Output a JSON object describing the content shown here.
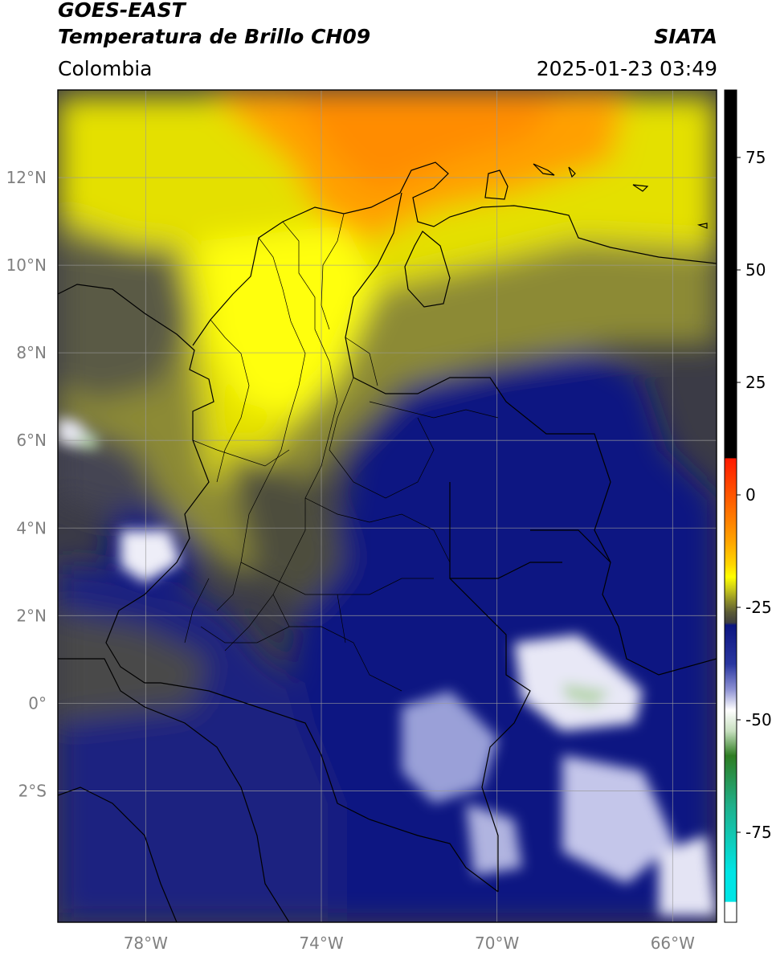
{
  "header": {
    "title_line1": "GOES-EAST",
    "title_line2": "Temperatura de Brillo CH09",
    "brand": "SIATA",
    "region": "Colombia",
    "datetime": "2025-01-23 03:49"
  },
  "map": {
    "lon_range": [
      -80,
      -65
    ],
    "lat_range": [
      -5,
      14
    ],
    "lon_ticks": [
      {
        "value": -78,
        "label": "78°W"
      },
      {
        "value": -74,
        "label": "74°W"
      },
      {
        "value": -70,
        "label": "70°W"
      },
      {
        "value": -66,
        "label": "66°W"
      }
    ],
    "lat_ticks": [
      {
        "value": 12,
        "label": "12°N"
      },
      {
        "value": 10,
        "label": "10°N"
      },
      {
        "value": 8,
        "label": "8°N"
      },
      {
        "value": 6,
        "label": "6°N"
      },
      {
        "value": 4,
        "label": "4°N"
      },
      {
        "value": 2,
        "label": "2°N"
      },
      {
        "value": 0,
        "label": "0°"
      },
      {
        "value": -2,
        "label": "2°S"
      }
    ],
    "grid": true
  },
  "colorbar": {
    "range": [
      -95,
      90
    ],
    "tick_labels": [
      {
        "value": 75,
        "label": "75"
      },
      {
        "value": 50,
        "label": "50"
      },
      {
        "value": 25,
        "label": "25"
      },
      {
        "value": 0,
        "label": "0"
      },
      {
        "value": -25,
        "label": "-25"
      },
      {
        "value": -50,
        "label": "-50"
      },
      {
        "value": -75,
        "label": "-75"
      }
    ],
    "colors": {
      "black_top": "#000000",
      "red": "#ff1a00",
      "orange": "#ff8c00",
      "yellow": "#ffff00",
      "olive": "#8a8a2a",
      "dark_gray": "#3f3f3f",
      "navy": "#0c1580",
      "lavender": "#c8c8ec",
      "white": "#ffffff",
      "green": "#2e7d22",
      "teal": "#1fb08a",
      "cyan": "#00e5e5"
    }
  }
}
